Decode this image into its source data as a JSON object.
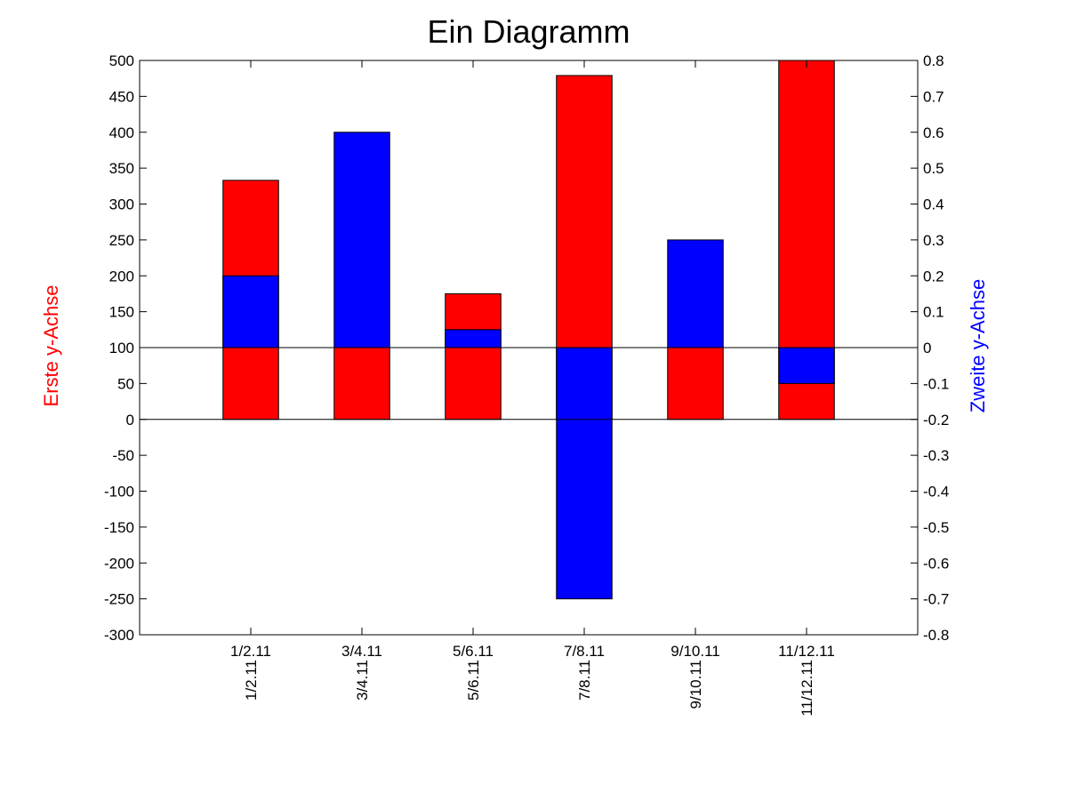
{
  "chart_data": {
    "type": "bar",
    "title": "Ein Diagramm",
    "ylabel": "Erste y-Achse",
    "ylabel_right": "Zweite y-Achse",
    "ylabel_color": "#ff0000",
    "ylabel_right_color": "#0000ff",
    "categories": [
      "1/2.11",
      "3/4.11",
      "5/6.11",
      "7/8.11",
      "9/10.11",
      "11/12.11"
    ],
    "rotated_category_labels": [
      "1/2.11",
      "3/4.11",
      "5/6.11",
      "7/8.11",
      "9/10.11",
      "11/12.11"
    ],
    "ylim": [
      -300,
      500
    ],
    "ylim_right": [
      -0.8,
      0.8
    ],
    "yticks": [
      -300,
      -250,
      -200,
      -150,
      -100,
      -50,
      0,
      50,
      100,
      150,
      200,
      250,
      300,
      350,
      400,
      450,
      500
    ],
    "yticks_right": [
      "-0.8",
      "-0.7",
      "-0.6",
      "-0.5",
      "-0.4",
      "-0.3",
      "-0.2",
      "-0.1",
      "0",
      "0.1",
      "0.2",
      "0.3",
      "0.4",
      "0.5",
      "0.6",
      "0.7",
      "0.8"
    ],
    "series": [
      {
        "axis": "left",
        "color": "#ff0000",
        "values": [
          333,
          100,
          175,
          479,
          100,
          500
        ]
      },
      {
        "axis": "right",
        "color": "#0000ff",
        "values": [
          0.2,
          0.6,
          0.05,
          -0.7,
          0.3,
          -0.1
        ]
      }
    ],
    "grid": false
  }
}
